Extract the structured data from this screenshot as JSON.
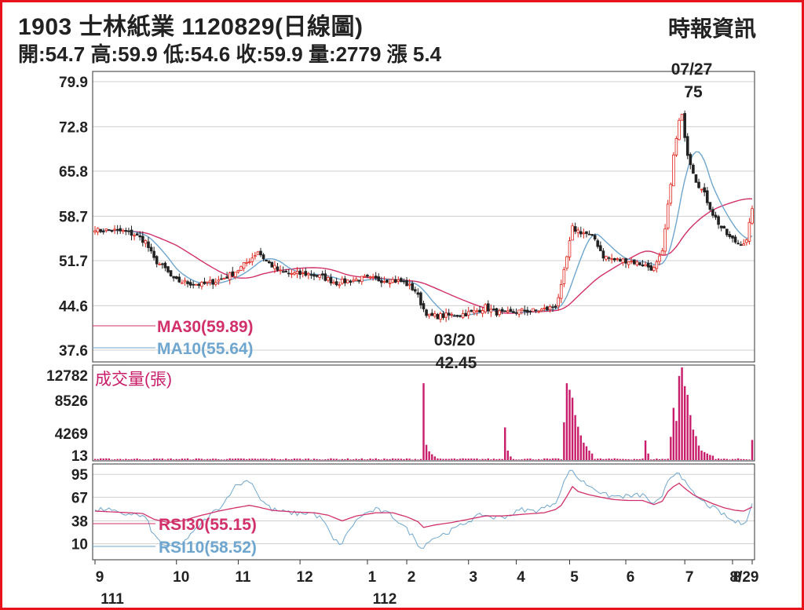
{
  "header": {
    "title": "1903  士林紙業 1120829(日線圖)",
    "source": "時報資訊",
    "quote": "開:54.7 高:59.9 低:54.6 收:59.9 量:2779 漲 5.4"
  },
  "chart_data": {
    "type": "candlestick",
    "price_axis": {
      "ticks": [
        "79.9",
        "72.8",
        "65.8",
        "58.7",
        "51.7",
        "44.6",
        "37.6"
      ],
      "ylim": [
        37.6,
        79.9
      ]
    },
    "volume_axis": {
      "title": "成交量(張)",
      "ticks": [
        "12782",
        "8526",
        "4269",
        "13"
      ],
      "ylim": [
        0,
        12782
      ]
    },
    "rsi_axis": {
      "ticks": [
        "95",
        "67",
        "38",
        "10"
      ],
      "ylim": [
        0,
        100
      ]
    },
    "x_months": [
      "9",
      "10",
      "11",
      "12",
      "1",
      "2",
      "3",
      "4",
      "5",
      "6",
      "7",
      "8",
      "8/29"
    ],
    "x_years": [
      "111",
      "112"
    ],
    "legend": {
      "ma30": "MA30(59.89)",
      "ma10": "MA10(55.64)",
      "rsi30": "RSI30(55.15)",
      "rsi10": "RSI10(58.52)"
    },
    "annotations": {
      "high_date": "07/27",
      "high_value": "75",
      "low_date": "03/20",
      "low_value": "42.45"
    },
    "colors": {
      "ma30": "#d1306a",
      "ma10": "#6fa6cf",
      "volume": "#c81d6a",
      "up": "#e0241b",
      "down": "#222222",
      "grid": "#cfcfcf"
    },
    "close_keypoints": [
      [
        0,
        56.4
      ],
      [
        5,
        56.5
      ],
      [
        10,
        56.3
      ],
      [
        14,
        55.8
      ],
      [
        18,
        54.7
      ],
      [
        21,
        51.9
      ],
      [
        25,
        50.4
      ],
      [
        28,
        48.6
      ],
      [
        33,
        48.2
      ],
      [
        38,
        47.9
      ],
      [
        44,
        48.6
      ],
      [
        48,
        49.4
      ],
      [
        52,
        50.6
      ],
      [
        56,
        52.2
      ],
      [
        58,
        53.2
      ],
      [
        61,
        51.6
      ],
      [
        66,
        49.9
      ],
      [
        71,
        49.6
      ],
      [
        76,
        49.6
      ],
      [
        81,
        49.1
      ],
      [
        86,
        48.2
      ],
      [
        91,
        48.6
      ],
      [
        96,
        48.9
      ],
      [
        101,
        48.7
      ],
      [
        106,
        48.6
      ],
      [
        110,
        48.3
      ],
      [
        114,
        47.0
      ],
      [
        117,
        44.1
      ],
      [
        119,
        42.9
      ],
      [
        124,
        43.0
      ],
      [
        130,
        43.2
      ],
      [
        135,
        43.6
      ],
      [
        139,
        44.4
      ],
      [
        142,
        43.6
      ],
      [
        146,
        43.3
      ],
      [
        152,
        43.8
      ],
      [
        157,
        43.8
      ],
      [
        161,
        44.1
      ],
      [
        164,
        44.6
      ],
      [
        166,
        47.5
      ],
      [
        168,
        52.2
      ],
      [
        170,
        56.8
      ],
      [
        172,
        56.4
      ],
      [
        175,
        55.9
      ],
      [
        178,
        55.1
      ],
      [
        181,
        52.4
      ],
      [
        185,
        51.8
      ],
      [
        190,
        51.7
      ],
      [
        195,
        51.1
      ],
      [
        199,
        50.4
      ],
      [
        202,
        52.9
      ],
      [
        204,
        60.2
      ],
      [
        206,
        68.1
      ],
      [
        208,
        73.6
      ],
      [
        209,
        74.4
      ],
      [
        211,
        68.6
      ],
      [
        214,
        64.4
      ],
      [
        217,
        62.1
      ],
      [
        220,
        59.1
      ],
      [
        223,
        56.9
      ],
      [
        226,
        55.3
      ],
      [
        229,
        54.4
      ],
      [
        232,
        54.7
      ],
      [
        234,
        59.9
      ]
    ],
    "volume_events": [
      [
        117,
        10600
      ],
      [
        118,
        2100
      ],
      [
        119,
        1200
      ],
      [
        120,
        800
      ],
      [
        121,
        500
      ],
      [
        146,
        4500
      ],
      [
        147,
        1300
      ],
      [
        148,
        500
      ],
      [
        167,
        5200
      ],
      [
        168,
        10600
      ],
      [
        169,
        9700
      ],
      [
        170,
        8600
      ],
      [
        171,
        6200
      ],
      [
        172,
        4600
      ],
      [
        173,
        3400
      ],
      [
        174,
        2400
      ],
      [
        175,
        1900
      ],
      [
        176,
        1300
      ],
      [
        177,
        900
      ],
      [
        196,
        2700
      ],
      [
        197,
        900
      ],
      [
        205,
        3200
      ],
      [
        206,
        7200
      ],
      [
        207,
        5400
      ],
      [
        208,
        11600
      ],
      [
        209,
        12782
      ],
      [
        210,
        10200
      ],
      [
        211,
        9000
      ],
      [
        212,
        6200
      ],
      [
        213,
        4200
      ],
      [
        214,
        3300
      ],
      [
        215,
        2000
      ],
      [
        216,
        1300
      ],
      [
        217,
        1100
      ],
      [
        218,
        900
      ],
      [
        219,
        700
      ],
      [
        220,
        600
      ],
      [
        234,
        2779
      ]
    ],
    "rsi10_keypoints": [
      [
        0,
        50
      ],
      [
        4,
        53
      ],
      [
        9,
        46
      ],
      [
        13,
        47
      ],
      [
        18,
        42
      ],
      [
        21,
        20
      ],
      [
        24,
        10
      ],
      [
        27,
        5
      ],
      [
        30,
        8
      ],
      [
        34,
        20
      ],
      [
        38,
        35
      ],
      [
        42,
        48
      ],
      [
        46,
        60
      ],
      [
        49,
        78
      ],
      [
        52,
        84
      ],
      [
        55,
        88
      ],
      [
        57,
        78
      ],
      [
        59,
        64
      ],
      [
        63,
        52
      ],
      [
        67,
        49
      ],
      [
        72,
        47
      ],
      [
        77,
        48
      ],
      [
        81,
        40
      ],
      [
        85,
        14
      ],
      [
        88,
        10
      ],
      [
        91,
        30
      ],
      [
        95,
        45
      ],
      [
        100,
        52
      ],
      [
        105,
        46
      ],
      [
        109,
        35
      ],
      [
        113,
        20
      ],
      [
        115,
        10
      ],
      [
        117,
        5
      ],
      [
        119,
        15
      ],
      [
        123,
        20
      ],
      [
        128,
        28
      ],
      [
        133,
        38
      ],
      [
        138,
        46
      ],
      [
        142,
        42
      ],
      [
        147,
        44
      ],
      [
        152,
        52
      ],
      [
        156,
        50
      ],
      [
        161,
        55
      ],
      [
        164,
        62
      ],
      [
        166,
        75
      ],
      [
        168,
        95
      ],
      [
        170,
        100
      ],
      [
        172,
        90
      ],
      [
        175,
        83
      ],
      [
        178,
        78
      ],
      [
        181,
        70
      ],
      [
        185,
        68
      ],
      [
        190,
        68
      ],
      [
        195,
        70
      ],
      [
        199,
        58
      ],
      [
        202,
        66
      ],
      [
        204,
        88
      ],
      [
        206,
        95
      ],
      [
        208,
        99
      ],
      [
        210,
        85
      ],
      [
        212,
        75
      ],
      [
        215,
        65
      ],
      [
        218,
        58
      ],
      [
        221,
        52
      ],
      [
        224,
        45
      ],
      [
        227,
        38
      ],
      [
        230,
        35
      ],
      [
        232,
        40
      ],
      [
        234,
        58
      ]
    ],
    "rsi30_keypoints": [
      [
        0,
        50
      ],
      [
        6,
        49
      ],
      [
        12,
        48
      ],
      [
        17,
        47
      ],
      [
        21,
        40
      ],
      [
        26,
        36
      ],
      [
        31,
        38
      ],
      [
        37,
        44
      ],
      [
        44,
        50
      ],
      [
        50,
        54
      ],
      [
        55,
        57
      ],
      [
        58,
        55
      ],
      [
        63,
        51
      ],
      [
        70,
        49
      ],
      [
        78,
        48
      ],
      [
        83,
        45
      ],
      [
        88,
        38
      ],
      [
        93,
        44
      ],
      [
        100,
        48
      ],
      [
        106,
        48
      ],
      [
        111,
        43
      ],
      [
        115,
        37
      ],
      [
        117,
        30
      ],
      [
        121,
        33
      ],
      [
        127,
        36
      ],
      [
        133,
        40
      ],
      [
        139,
        44
      ],
      [
        145,
        44
      ],
      [
        152,
        46
      ],
      [
        160,
        48
      ],
      [
        164,
        52
      ],
      [
        166,
        57
      ],
      [
        168,
        68
      ],
      [
        170,
        80
      ],
      [
        172,
        74
      ],
      [
        176,
        70
      ],
      [
        180,
        67
      ],
      [
        185,
        64
      ],
      [
        190,
        63
      ],
      [
        195,
        63
      ],
      [
        199,
        58
      ],
      [
        202,
        62
      ],
      [
        204,
        74
      ],
      [
        206,
        80
      ],
      [
        208,
        84
      ],
      [
        210,
        78
      ],
      [
        213,
        70
      ],
      [
        216,
        65
      ],
      [
        220,
        59
      ],
      [
        224,
        54
      ],
      [
        228,
        51
      ],
      [
        231,
        50
      ],
      [
        234,
        55
      ]
    ]
  }
}
